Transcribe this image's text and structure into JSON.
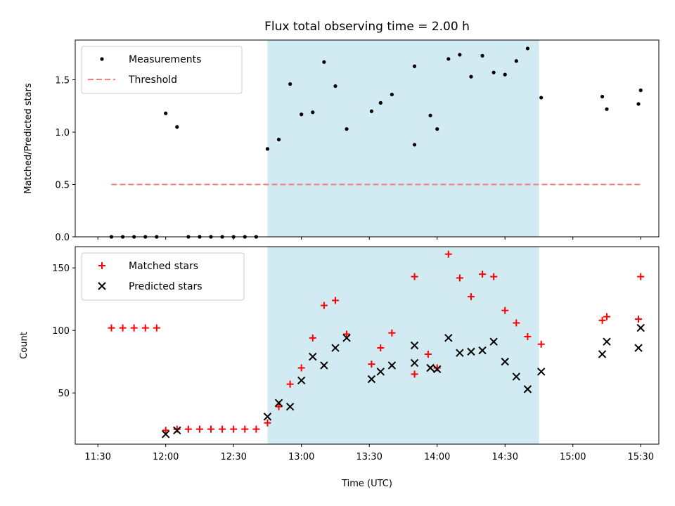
{
  "chart_data": {
    "title": "Flux total observing time = 2.00 h",
    "xlabel": "Time (UTC)",
    "x_ticks": [
      "11:30",
      "12:00",
      "12:30",
      "13:00",
      "13:30",
      "14:00",
      "14:30",
      "15:00",
      "15:30"
    ],
    "highlight_span": {
      "start": "12:45",
      "end": "14:45",
      "color": "#add8e6"
    },
    "panels": [
      {
        "type": "scatter",
        "ylabel": "Matched/Predicted stars",
        "ylim": [
          0,
          1.88
        ],
        "yticks": [
          "0.0",
          "0.5",
          "1.0",
          "1.5"
        ],
        "legend_position": "top-left",
        "series": [
          {
            "name": "Measurements",
            "marker": "dot",
            "color": "#000000",
            "points": [
              [
                "11:36",
                0
              ],
              [
                "11:41",
                0
              ],
              [
                "11:46",
                0
              ],
              [
                "11:51",
                0
              ],
              [
                "11:56",
                0
              ],
              [
                "12:00",
                1.18
              ],
              [
                "12:05",
                1.05
              ],
              [
                "12:10",
                0
              ],
              [
                "12:15",
                0
              ],
              [
                "12:20",
                0
              ],
              [
                "12:25",
                0
              ],
              [
                "12:30",
                0
              ],
              [
                "12:35",
                0
              ],
              [
                "12:40",
                0
              ],
              [
                "12:45",
                0.84
              ],
              [
                "12:50",
                0.93
              ],
              [
                "12:55",
                1.46
              ],
              [
                "13:00",
                1.17
              ],
              [
                "13:05",
                1.19
              ],
              [
                "13:10",
                1.67
              ],
              [
                "13:15",
                1.44
              ],
              [
                "13:20",
                1.03
              ],
              [
                "13:31",
                1.2
              ],
              [
                "13:35",
                1.28
              ],
              [
                "13:40",
                1.36
              ],
              [
                "13:50",
                0.88
              ],
              [
                "13:50",
                1.63
              ],
              [
                "13:57",
                1.16
              ],
              [
                "14:00",
                1.03
              ],
              [
                "14:05",
                1.7
              ],
              [
                "14:10",
                1.74
              ],
              [
                "14:15",
                1.53
              ],
              [
                "14:20",
                1.73
              ],
              [
                "14:25",
                1.57
              ],
              [
                "14:30",
                1.55
              ],
              [
                "14:35",
                1.68
              ],
              [
                "14:40",
                1.8
              ],
              [
                "14:46",
                1.33
              ],
              [
                "15:13",
                1.34
              ],
              [
                "15:15",
                1.22
              ],
              [
                "15:29",
                1.27
              ],
              [
                "15:30",
                1.4
              ]
            ]
          },
          {
            "name": "Threshold",
            "type": "line",
            "style": "dashed",
            "color": "#f08080",
            "points": [
              [
                "11:36",
                0.5
              ],
              [
                "15:30",
                0.5
              ]
            ]
          }
        ]
      },
      {
        "type": "scatter",
        "ylabel": "Count",
        "ylim": [
          9,
          167
        ],
        "yticks": [
          "50",
          "100",
          "150"
        ],
        "legend_position": "top-left",
        "series": [
          {
            "name": "Matched stars",
            "marker": "plus",
            "color": "#ff0000",
            "points": [
              [
                "11:36",
                102
              ],
              [
                "11:41",
                102
              ],
              [
                "11:46",
                102
              ],
              [
                "11:51",
                102
              ],
              [
                "11:56",
                102
              ],
              [
                "12:00",
                20
              ],
              [
                "12:05",
                21
              ],
              [
                "12:10",
                21
              ],
              [
                "12:15",
                21
              ],
              [
                "12:20",
                21
              ],
              [
                "12:25",
                21
              ],
              [
                "12:30",
                21
              ],
              [
                "12:35",
                21
              ],
              [
                "12:40",
                21
              ],
              [
                "12:45",
                26
              ],
              [
                "12:50",
                39
              ],
              [
                "12:55",
                57
              ],
              [
                "13:00",
                70
              ],
              [
                "13:05",
                94
              ],
              [
                "13:10",
                120
              ],
              [
                "13:15",
                124
              ],
              [
                "13:20",
                97
              ],
              [
                "13:31",
                73
              ],
              [
                "13:35",
                86
              ],
              [
                "13:40",
                98
              ],
              [
                "13:50",
                65
              ],
              [
                "13:50",
                143
              ],
              [
                "13:56",
                81
              ],
              [
                "14:00",
                70
              ],
              [
                "14:05",
                161
              ],
              [
                "14:10",
                142
              ],
              [
                "14:15",
                127
              ],
              [
                "14:20",
                145
              ],
              [
                "14:25",
                143
              ],
              [
                "14:30",
                116
              ],
              [
                "14:35",
                106
              ],
              [
                "14:40",
                95
              ],
              [
                "14:46",
                89
              ],
              [
                "15:13",
                108
              ],
              [
                "15:15",
                111
              ],
              [
                "15:29",
                109
              ],
              [
                "15:30",
                143
              ]
            ]
          },
          {
            "name": "Predicted stars",
            "marker": "x",
            "color": "#000000",
            "points": [
              [
                "12:00",
                17
              ],
              [
                "12:05",
                20
              ],
              [
                "12:45",
                31
              ],
              [
                "12:50",
                42
              ],
              [
                "12:55",
                39
              ],
              [
                "13:00",
                60
              ],
              [
                "13:05",
                79
              ],
              [
                "13:10",
                72
              ],
              [
                "13:15",
                86
              ],
              [
                "13:20",
                94
              ],
              [
                "13:31",
                61
              ],
              [
                "13:35",
                67
              ],
              [
                "13:40",
                72
              ],
              [
                "13:50",
                74
              ],
              [
                "13:50",
                88
              ],
              [
                "13:57",
                70
              ],
              [
                "14:00",
                69
              ],
              [
                "14:05",
                94
              ],
              [
                "14:10",
                82
              ],
              [
                "14:15",
                83
              ],
              [
                "14:20",
                84
              ],
              [
                "14:25",
                91
              ],
              [
                "14:30",
                75
              ],
              [
                "14:35",
                63
              ],
              [
                "14:40",
                53
              ],
              [
                "14:46",
                67
              ],
              [
                "15:13",
                81
              ],
              [
                "15:15",
                91
              ],
              [
                "15:29",
                86
              ],
              [
                "15:30",
                102
              ]
            ]
          }
        ]
      }
    ]
  }
}
